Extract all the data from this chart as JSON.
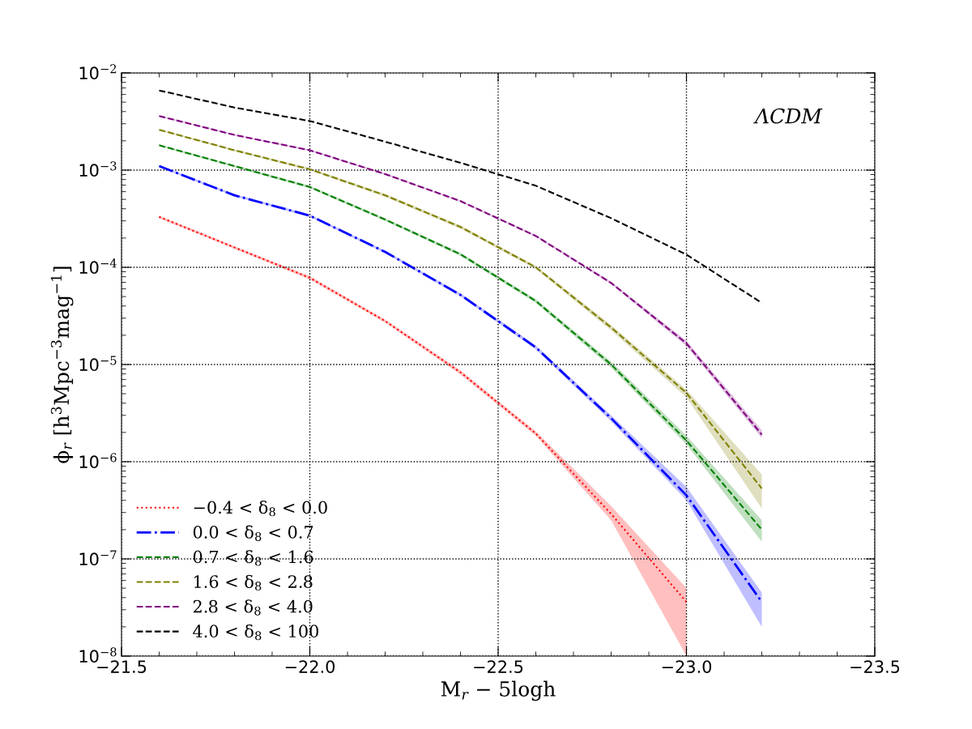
{
  "chart_data": {
    "type": "line",
    "xlabel": "M$_{r}$ − 5logh",
    "ylabel": "ϕ$_{r}$ [h$^{3}$Mpc$^{−3}$mag$^{−1}$]",
    "annotations": [
      "ΛCDM"
    ],
    "x": [
      -21.6,
      -21.8,
      -22.0,
      -22.2,
      -22.4,
      -22.6,
      -22.8,
      -23.0,
      -23.2
    ],
    "series": [
      {
        "name": "−0.4 < δ$_{8}$ < 0.0",
        "color": "#ff0000",
        "line_style": "dotted",
        "values": [
          0.00033,
          0.00016,
          7.8e-05,
          2.8e-05,
          8.3e-06,
          1.95e-06,
          2.9e-07,
          3.6e-08,
          null
        ],
        "lower": [
          0.00032,
          0.000155,
          7.5e-05,
          2.7e-05,
          7.9e-06,
          1.85e-06,
          2.5e-07,
          1e-08,
          null
        ],
        "upper": [
          0.00034,
          0.000165,
          8.1e-05,
          2.9e-05,
          8.7e-06,
          2.05e-06,
          3.5e-07,
          5e-08,
          null
        ]
      },
      {
        "name": "0.0 < δ$_{8}$ < 0.7",
        "color": "#0000ff",
        "line_style": "dashdot",
        "values": [
          0.0011,
          0.00055,
          0.00034,
          0.000144,
          5.2e-05,
          1.5e-05,
          2.8e-06,
          4.5e-07,
          3.6e-08
        ],
        "lower": [
          0.00107,
          0.000535,
          0.00033,
          0.00014,
          5e-05,
          1.43e-05,
          2.6e-06,
          4e-07,
          2e-08
        ],
        "upper": [
          0.00113,
          0.000565,
          0.00035,
          0.000148,
          5.4e-05,
          1.57e-05,
          3e-06,
          5.5e-07,
          4.5e-08
        ]
      },
      {
        "name": "0.7 < δ$_{8}$ < 1.6",
        "color": "#008000",
        "line_style": "dashed",
        "values": [
          0.0018,
          0.0011,
          0.00067,
          0.00031,
          0.000136,
          4.5e-05,
          1e-05,
          1.65e-06,
          2e-07
        ],
        "lower": [
          0.00176,
          0.00107,
          0.00065,
          0.0003,
          0.000131,
          4.3e-05,
          9.3e-06,
          1.5e-06,
          1.5e-07
        ],
        "upper": [
          0.00184,
          0.00113,
          0.00069,
          0.00032,
          0.000141,
          4.7e-05,
          1.07e-05,
          1.85e-06,
          2.5e-07
        ]
      },
      {
        "name": "1.6 < δ$_{8}$ < 2.8",
        "color": "#808000",
        "line_style": "dashed",
        "values": [
          0.0026,
          0.0016,
          0.00102,
          0.00055,
          0.00026,
          0.0001,
          2.4e-05,
          5.1e-06,
          5.3e-07
        ],
        "lower": [
          0.00255,
          0.00156,
          0.00099,
          0.00053,
          0.00025,
          9.6e-05,
          2.25e-05,
          4.6e-06,
          3.3e-07
        ],
        "upper": [
          0.00265,
          0.00164,
          0.00105,
          0.00057,
          0.00027,
          0.000104,
          2.55e-05,
          5.5e-06,
          7.4e-07
        ]
      },
      {
        "name": "2.8 < δ$_{8}$ < 4.0",
        "color": "#800080",
        "line_style": "dashed",
        "values": [
          0.0036,
          0.0023,
          0.0016,
          0.00091,
          0.00048,
          0.00021,
          6.9e-05,
          1.65e-05,
          1.9e-06
        ],
        "lower": [
          0.00355,
          0.00226,
          0.00157,
          0.00089,
          0.00047,
          0.000205,
          6.7e-05,
          1.55e-05,
          1.75e-06
        ],
        "upper": [
          0.00365,
          0.00234,
          0.00163,
          0.00093,
          0.00049,
          0.000215,
          7.1e-05,
          1.75e-05,
          2.1e-06
        ]
      },
      {
        "name": "4.0 < δ$_{8}$ < 100",
        "color": "#000000",
        "line_style": "dashed",
        "values": [
          0.0066,
          0.0044,
          0.0032,
          0.00196,
          0.00119,
          0.00069,
          0.00032,
          0.000135,
          4.3e-05
        ]
      }
    ],
    "log": "y",
    "xlim": [
      -21.5,
      -23.5
    ],
    "xticks": [
      {
        "value": -21.5,
        "label": "−21.5"
      },
      {
        "value": -22.0,
        "label": "−22.0"
      },
      {
        "value": -22.5,
        "label": "−22.5"
      },
      {
        "value": -23.0,
        "label": "−23.0"
      },
      {
        "value": -23.5,
        "label": "−23.5"
      }
    ],
    "ylim": [
      1e-08,
      0.01
    ],
    "yticks": [
      {
        "value": 1e-08,
        "label": "10$^{−8}$"
      },
      {
        "value": 1e-07,
        "label": "10$^{−7}$"
      },
      {
        "value": 1e-06,
        "label": "10$^{−6}$"
      },
      {
        "value": 1e-05,
        "label": "10$^{−5}$"
      },
      {
        "value": 0.0001,
        "label": "10$^{−4}$"
      },
      {
        "value": 0.001,
        "label": "10$^{−3}$"
      },
      {
        "value": 0.01,
        "label": "10$^{−2}$"
      }
    ],
    "grid": true,
    "legend": "bottom left"
  }
}
